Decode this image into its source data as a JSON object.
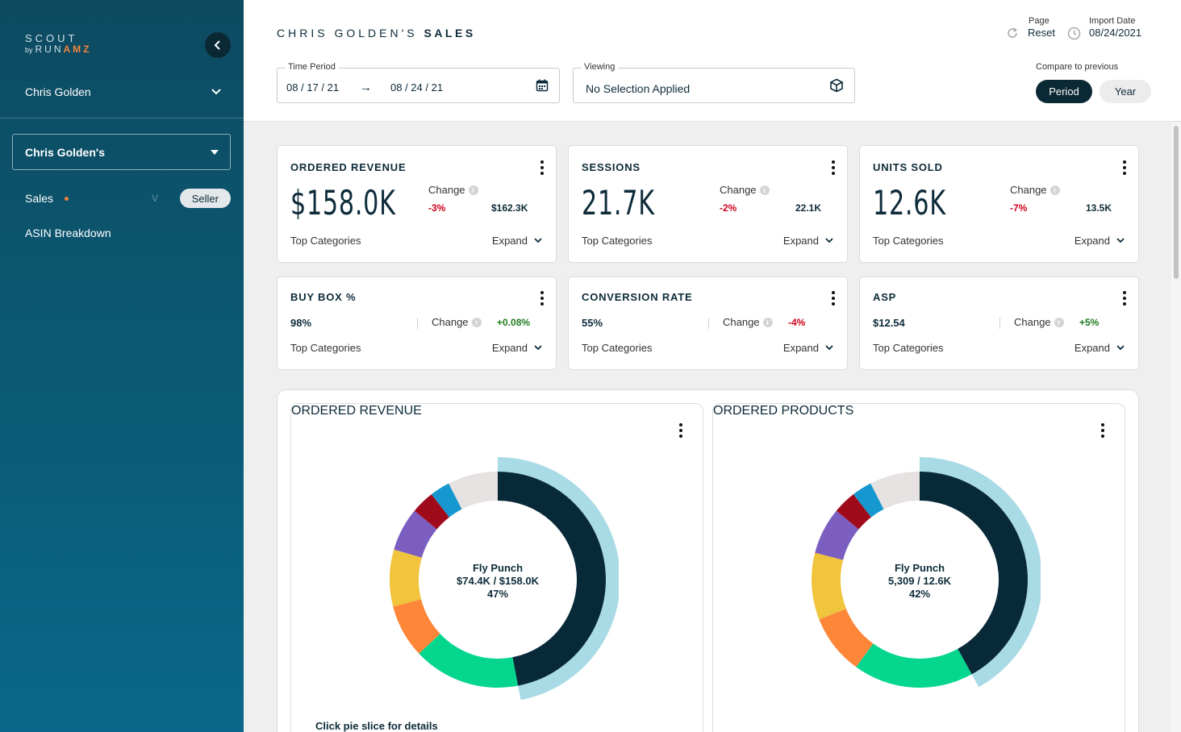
{
  "sidebar": {
    "logo": {
      "line1": "SCOUT",
      "by": "by",
      "run": "RUN",
      "amz": "AMZ"
    },
    "user_name": "Chris Golden",
    "account": "Chris Golden's",
    "nav": {
      "sales": "Sales",
      "v_mark": "V",
      "seller_pill": "Seller",
      "asin": "ASIN Breakdown"
    }
  },
  "header": {
    "title_prefix": "CHRIS GOLDEN'S",
    "title_bold": "SALES",
    "time_period": {
      "label": "Time Period",
      "start": "08 / 17 / 21",
      "end": "08 / 24 / 21"
    },
    "viewing": {
      "label": "Viewing",
      "value": "No Selection Applied"
    },
    "page_reset": {
      "small": "Page",
      "label": "Reset"
    },
    "import_date": {
      "small": "Import Date",
      "value": "08/24/2021"
    },
    "compare": {
      "label": "Compare to previous",
      "period": "Period",
      "year": "Year"
    }
  },
  "common": {
    "change": "Change",
    "top_categories": "Top Categories",
    "expand": "Expand"
  },
  "metrics_big": [
    {
      "title": "ORDERED REVENUE",
      "value": "$158.0K",
      "change": "-3%",
      "previous": "$162.3K"
    },
    {
      "title": "SESSIONS",
      "value": "21.7K",
      "change": "-2%",
      "previous": "22.1K"
    },
    {
      "title": "UNITS SOLD",
      "value": "12.6K",
      "change": "-7%",
      "previous": "13.5K"
    }
  ],
  "metrics_small": [
    {
      "title": "BUY BOX %",
      "value": "98%",
      "change": "+0.08%"
    },
    {
      "title": "CONVERSION RATE",
      "value": "55%",
      "change": "-4%"
    },
    {
      "title": "ASP",
      "value": "$12.54",
      "change": "+5%"
    }
  ],
  "colors": {
    "navy": "#082a38",
    "green": "#05d68e",
    "orange": "#fd8639",
    "yellow": "#f0c43c",
    "purple": "#7b5ec0",
    "darkred": "#a00b1b",
    "blue": "#1597cf",
    "grey": "#e5e2e1",
    "highlight": "#a9dbe6"
  },
  "charts": [
    {
      "title": "ORDERED REVENUE",
      "center": {
        "name": "Fly Punch",
        "value": "$74.4K / $158.0K",
        "pct": "47%"
      },
      "hint": "Click pie slice for details",
      "slices": [
        {
          "value": 47,
          "color": "#082a38",
          "selected": true
        },
        {
          "value": 16,
          "color": "#05d68e"
        },
        {
          "value": 8,
          "color": "#fd8639"
        },
        {
          "value": 8.5,
          "color": "#f0c43c"
        },
        {
          "value": 6.5,
          "color": "#7b5ec0"
        },
        {
          "value": 3.5,
          "color": "#a00b1b"
        },
        {
          "value": 3,
          "color": "#1597cf"
        },
        {
          "value": 7.5,
          "color": "#e5e2e1"
        }
      ]
    },
    {
      "title": "ORDERED PRODUCTS",
      "center": {
        "name": "Fly Punch",
        "value": "5,309 / 12.6K",
        "pct": "42%"
      },
      "slices": [
        {
          "value": 42,
          "color": "#082a38",
          "selected": true
        },
        {
          "value": 18,
          "color": "#05d68e"
        },
        {
          "value": 9,
          "color": "#fd8639"
        },
        {
          "value": 10,
          "color": "#f0c43c"
        },
        {
          "value": 7,
          "color": "#7b5ec0"
        },
        {
          "value": 3.5,
          "color": "#a00b1b"
        },
        {
          "value": 3,
          "color": "#1597cf"
        },
        {
          "value": 7.5,
          "color": "#e5e2e1"
        }
      ]
    }
  ]
}
